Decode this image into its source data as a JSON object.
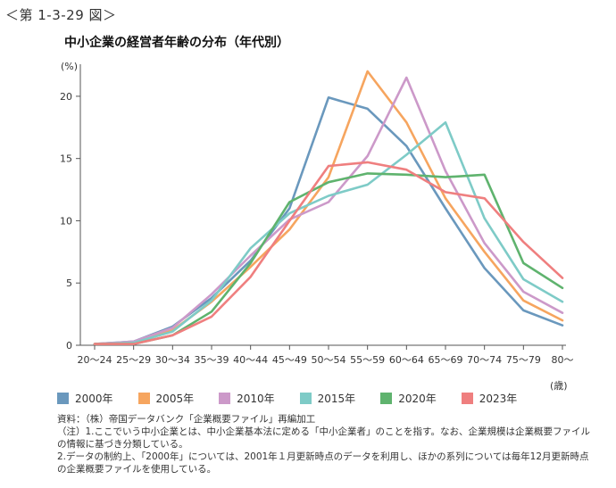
{
  "figure_number": "＜第 1-3-29 図＞",
  "chart_data": {
    "type": "line",
    "title": "中小企業の経営者年齢の分布（年代別）",
    "y_unit": "(%)",
    "x_unit": "(歳)",
    "categories": [
      "20～24",
      "25～29",
      "30～34",
      "35～39",
      "40～44",
      "45～49",
      "50～54",
      "55～59",
      "60～64",
      "65～69",
      "70～74",
      "75～79",
      "80～"
    ],
    "ylim": [
      0,
      22
    ],
    "yticks": [
      0,
      5,
      10,
      15,
      20
    ],
    "grid": false,
    "legend_position": "bottom",
    "series": [
      {
        "name": "2000年",
        "color": "#6a98bd",
        "values": [
          0.1,
          0.3,
          1.5,
          3.8,
          6.8,
          11.0,
          19.9,
          19.0,
          16.0,
          11.0,
          6.2,
          2.8,
          1.6
        ]
      },
      {
        "name": "2005年",
        "color": "#f6a55f",
        "values": [
          0.1,
          0.2,
          1.2,
          3.5,
          6.3,
          9.3,
          13.5,
          22.0,
          17.9,
          11.8,
          7.5,
          3.6,
          2.0
        ]
      },
      {
        "name": "2010年",
        "color": "#cc99c9",
        "values": [
          0.1,
          0.3,
          1.4,
          4.1,
          7.2,
          10.1,
          11.5,
          15.2,
          21.5,
          14.0,
          8.2,
          4.3,
          2.6
        ]
      },
      {
        "name": "2015年",
        "color": "#7ecbc7",
        "values": [
          0.1,
          0.2,
          1.1,
          3.6,
          7.8,
          10.6,
          12.0,
          12.9,
          15.3,
          17.9,
          10.2,
          5.3,
          3.5
        ]
      },
      {
        "name": "2020年",
        "color": "#5fb36e",
        "values": [
          0.1,
          0.1,
          0.8,
          2.7,
          6.6,
          11.5,
          13.1,
          13.8,
          13.7,
          13.5,
          13.7,
          6.6,
          4.6
        ]
      },
      {
        "name": "2023年",
        "color": "#ef7f7f",
        "values": [
          0.1,
          0.1,
          0.8,
          2.3,
          5.5,
          10.0,
          14.4,
          14.7,
          14.1,
          12.3,
          11.8,
          8.3,
          5.4
        ]
      }
    ]
  },
  "notes": {
    "source": "資料：（株）帝国データバンク「企業概要ファイル」再編加工",
    "note1": "（注）1.ここでいう中小企業とは、中小企業基本法に定める「中小企業者」のことを指す。なお、企業規模は企業概要ファイルの情報に基づき分類している。",
    "note2": "2.データの制約上、「2000年」については、2001年１月更新時点のデータを利用し、ほかの系列については毎年12月更新時点の企業概要ファイルを使用している。"
  }
}
